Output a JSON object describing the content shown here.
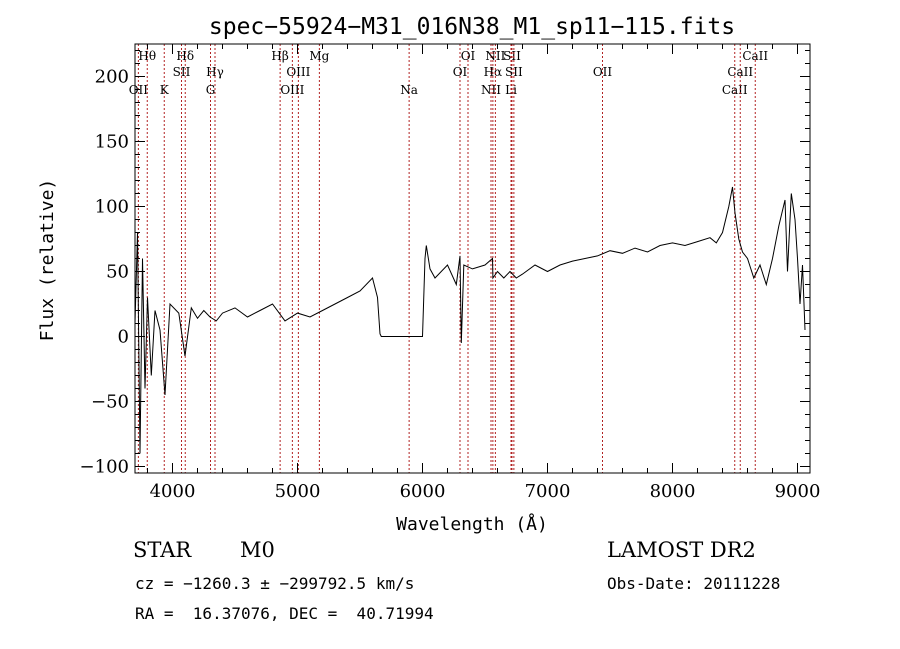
{
  "colors": {
    "axis": "#000000",
    "line_marker": "#b22222",
    "background": "#ffffff"
  },
  "info": {
    "class_label": "STAR",
    "subclass_label": "M0",
    "survey_label": "LAMOST DR2",
    "cz_line": "cz = −1260.3 ± −299792.5 km/s",
    "obsdate_line": "Obs-Date: 20111228",
    "radec_line": "RA =  16.37076, DEC =  40.71994"
  },
  "chart_data": {
    "type": "line",
    "title": "spec−55924−M31_016N38_M1_sp11−115.fits",
    "xlabel": "Wavelength (Å)",
    "ylabel": "Flux (relative)",
    "xlim": [
      3700,
      9100
    ],
    "ylim": [
      -105,
      225
    ],
    "xticks": [
      4000,
      5000,
      6000,
      7000,
      8000,
      9000
    ],
    "yticks": [
      -100,
      -50,
      0,
      50,
      100,
      150,
      200
    ],
    "grid": false,
    "series": [
      {
        "values_x": [
          3700,
          3720,
          3740,
          3760,
          3780,
          3800,
          3830,
          3860,
          3900,
          3940,
          3980,
          4050,
          4100,
          4150,
          4200,
          4250,
          4300,
          4350,
          4400,
          4500,
          4600,
          4700,
          4800,
          4900,
          5000,
          5100,
          5200,
          5300,
          5400,
          5500,
          5600,
          5640,
          5660,
          5670,
          5700,
          5900,
          6000,
          6020,
          6030,
          6060,
          6100,
          6200,
          6270,
          6300,
          6310,
          6330,
          6400,
          6500,
          6560,
          6563,
          6600,
          6650,
          6700,
          6750,
          6800,
          6900,
          7000,
          7100,
          7200,
          7300,
          7400,
          7500,
          7600,
          7700,
          7800,
          7900,
          8000,
          8100,
          8200,
          8300,
          8350,
          8400,
          8450,
          8480,
          8500,
          8530,
          8560,
          8600,
          8650,
          8700,
          8750,
          8800,
          8850,
          8900,
          8920,
          8950,
          8980,
          9000,
          9020,
          9040,
          9060
        ],
        "values_y": [
          10,
          80,
          -90,
          60,
          -40,
          30,
          -30,
          20,
          5,
          -45,
          25,
          18,
          -15,
          22,
          14,
          20,
          15,
          12,
          18,
          22,
          15,
          20,
          25,
          12,
          18,
          15,
          20,
          25,
          30,
          35,
          45,
          30,
          2,
          0,
          0,
          0,
          0,
          60,
          70,
          52,
          45,
          55,
          40,
          62,
          -5,
          55,
          52,
          55,
          60,
          45,
          50,
          45,
          50,
          45,
          48,
          55,
          50,
          55,
          58,
          60,
          62,
          66,
          64,
          68,
          65,
          70,
          72,
          70,
          73,
          76,
          72,
          80,
          100,
          115,
          95,
          75,
          65,
          60,
          45,
          55,
          40,
          60,
          85,
          105,
          50,
          110,
          90,
          60,
          25,
          55,
          5
        ]
      }
    ],
    "lines": [
      {
        "wavelength": 3727,
        "label": "OII",
        "row": 3
      },
      {
        "wavelength": 3798,
        "label": "Hθ",
        "row": 1
      },
      {
        "wavelength": 3934,
        "label": "K",
        "row": 3
      },
      {
        "wavelength": 4072,
        "label": "SII",
        "row": 2
      },
      {
        "wavelength": 4102,
        "label": "Hδ",
        "row": 1
      },
      {
        "wavelength": 4304,
        "label": "G",
        "row": 3
      },
      {
        "wavelength": 4340,
        "label": "Hγ",
        "row": 2
      },
      {
        "wavelength": 4861,
        "label": "Hβ",
        "row": 1
      },
      {
        "wavelength": 4959,
        "label": "OIII",
        "row": 3
      },
      {
        "wavelength": 5007,
        "label": "OIII",
        "row": 2
      },
      {
        "wavelength": 5175,
        "label": "Mg",
        "row": 1
      },
      {
        "wavelength": 5893,
        "label": "Na",
        "row": 3
      },
      {
        "wavelength": 6300,
        "label": "OI",
        "row": 2
      },
      {
        "wavelength": 6364,
        "label": "OI",
        "row": 1
      },
      {
        "wavelength": 6548,
        "label": "NII",
        "row": 3
      },
      {
        "wavelength": 6563,
        "label": "Hα",
        "row": 2
      },
      {
        "wavelength": 6583,
        "label": "NII",
        "row": 1
      },
      {
        "wavelength": 6708,
        "label": "Li",
        "row": 3
      },
      {
        "wavelength": 6716,
        "label": "SII",
        "row": 1
      },
      {
        "wavelength": 6731,
        "label": "SII",
        "row": 2
      },
      {
        "wavelength": 7440,
        "label": "OII",
        "row": 2
      },
      {
        "wavelength": 8498,
        "label": "CaII",
        "row": 3
      },
      {
        "wavelength": 8542,
        "label": "CaII",
        "row": 2
      },
      {
        "wavelength": 8662,
        "label": "CaII",
        "row": 1
      }
    ]
  }
}
